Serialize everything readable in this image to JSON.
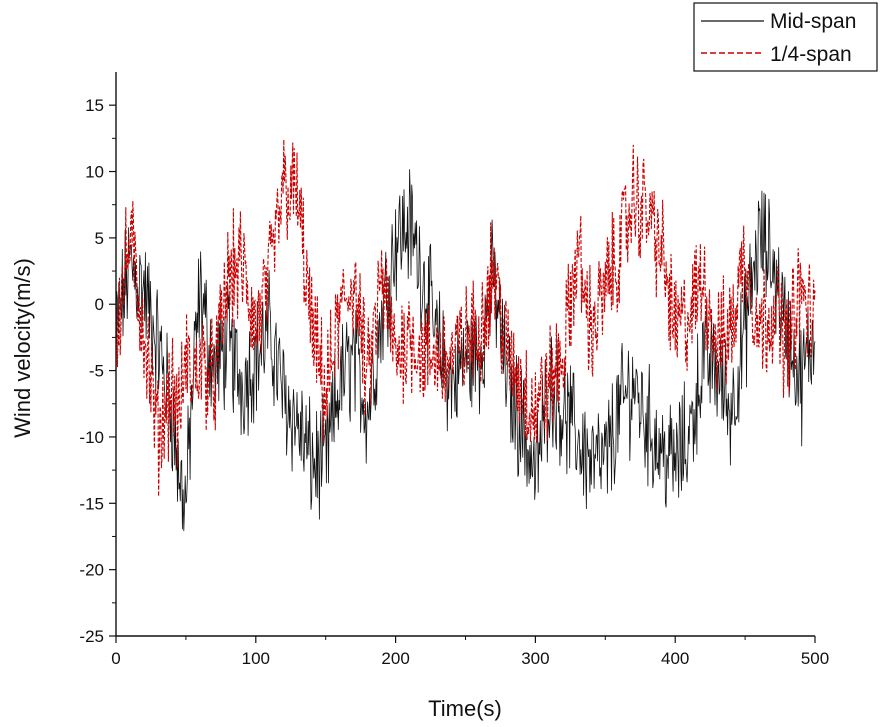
{
  "chart_data": {
    "type": "line",
    "title": "",
    "xlabel": "Time(s)",
    "ylabel": "Wind velocity(m/s)",
    "xlim": [
      0,
      500
    ],
    "ylim": [
      -25,
      17.5
    ],
    "xticks": [
      0,
      100,
      200,
      300,
      400,
      500
    ],
    "yticks": [
      -25,
      -20,
      -15,
      -10,
      -5,
      0,
      5,
      10,
      15
    ],
    "x_tick_labels": [
      "0",
      "100",
      "200",
      "300",
      "400",
      "500"
    ],
    "y_tick_labels": [
      "-25",
      "-20",
      "-15",
      "-10",
      "-5",
      "0",
      "5",
      "10",
      "15"
    ],
    "grid": false,
    "legend_position": "top-right",
    "x": [
      0,
      10,
      20,
      30,
      40,
      45,
      50,
      55,
      60,
      70,
      80,
      90,
      100,
      110,
      120,
      130,
      140,
      150,
      160,
      170,
      180,
      190,
      200,
      210,
      220,
      230,
      240,
      250,
      260,
      270,
      280,
      290,
      300,
      310,
      320,
      330,
      340,
      350,
      360,
      370,
      380,
      390,
      400,
      410,
      420,
      430,
      440,
      450,
      460,
      470,
      480,
      490,
      500
    ],
    "series": [
      {
        "name": "Mid-span",
        "color": "#111111",
        "dash": "solid",
        "values": [
          -2,
          3,
          1,
          -3,
          -8,
          -13,
          -15,
          -6,
          1,
          -5,
          -3,
          -6,
          -4,
          -2,
          -7,
          -9,
          -12,
          -12,
          -6,
          -4,
          -8,
          -1,
          5,
          6,
          2,
          -3,
          -6,
          -4,
          -4,
          2,
          -6,
          -9,
          -13,
          -6,
          -8,
          -10,
          -12,
          -12,
          -8,
          -6,
          -9,
          -11,
          -12,
          -10,
          -4,
          -5,
          -8,
          -2,
          5,
          3,
          -2,
          -6,
          -2
        ]
      },
      {
        "name": "1/4-span",
        "color": "#cc0000",
        "dash": "dashed",
        "values": [
          -2,
          5,
          -2,
          -10,
          -6,
          -9,
          -4,
          -6,
          -4,
          -6,
          2,
          3,
          -2,
          2,
          9,
          8,
          -2,
          -7,
          -1,
          2,
          -6,
          2,
          -4,
          -2,
          -4,
          -4,
          -4,
          -3,
          -2,
          3,
          -4,
          -6,
          -8,
          -6,
          -4,
          4,
          -2,
          1,
          4,
          8,
          7,
          4,
          -2,
          -1,
          2,
          -3,
          -2,
          4,
          -2,
          0,
          -3,
          1,
          -2
        ]
      }
    ]
  }
}
